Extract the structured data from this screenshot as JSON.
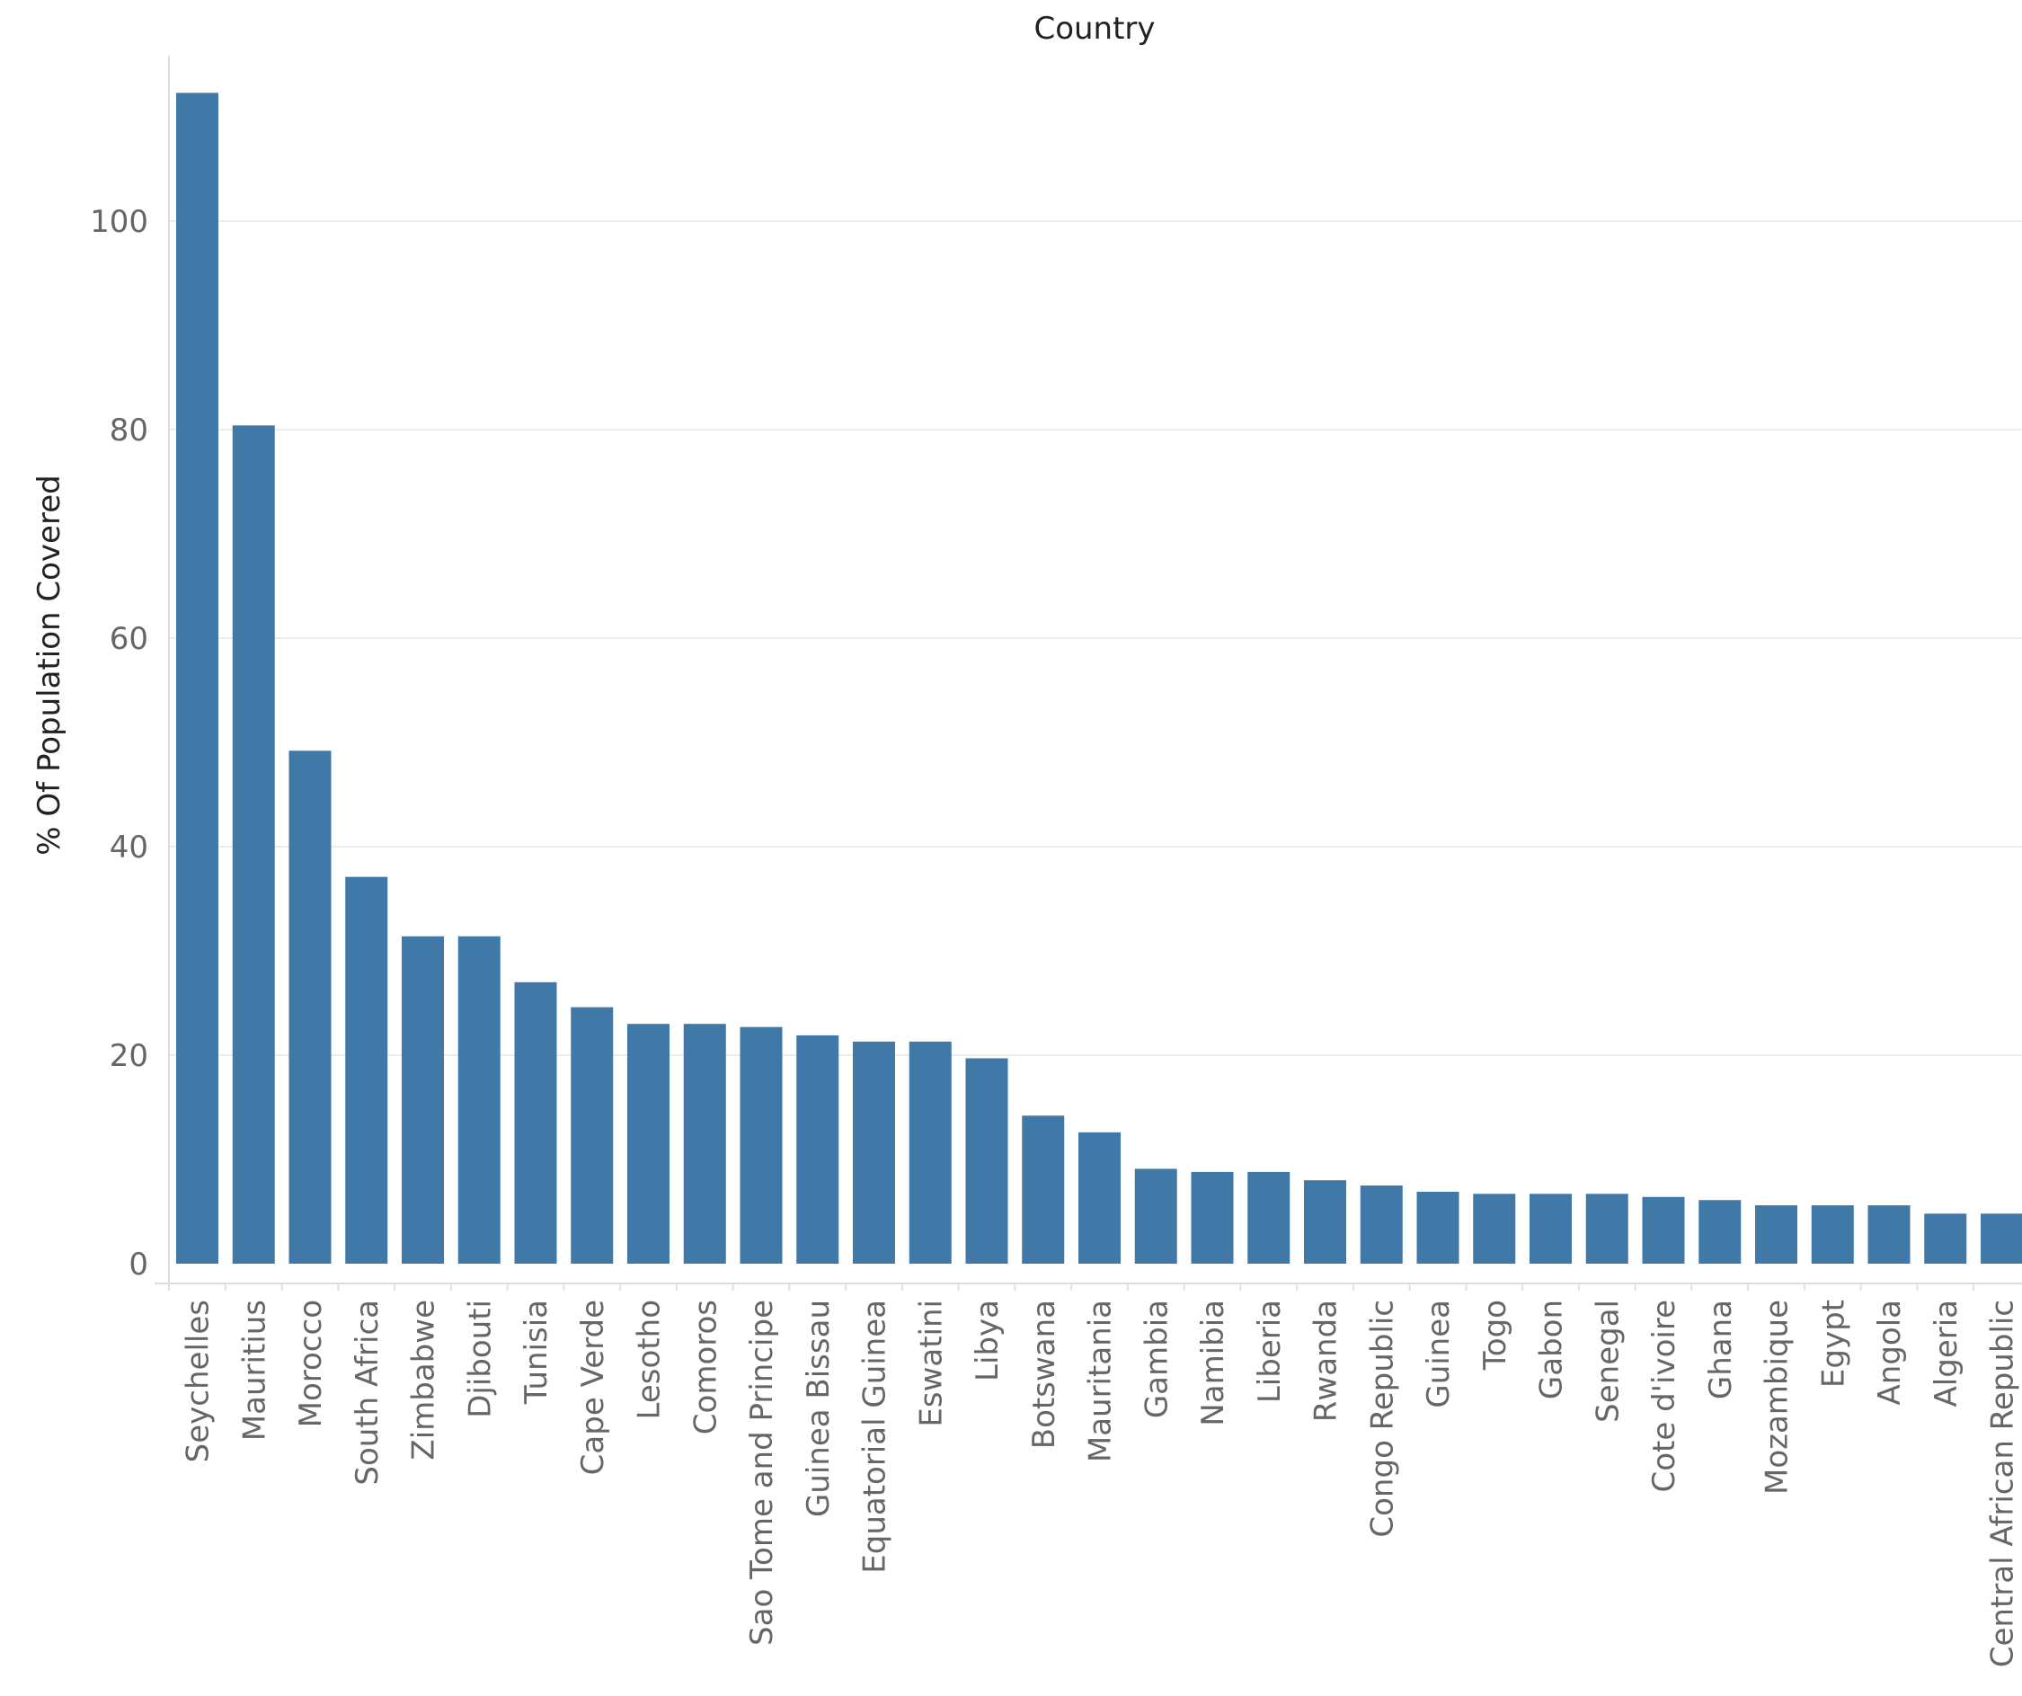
{
  "chart_data": {
    "type": "bar",
    "title": "Country",
    "xlabel": "",
    "ylabel": "% Of Population Covered",
    "ylim": [
      0,
      115
    ],
    "yticks": [
      0,
      20,
      40,
      60,
      80,
      100
    ],
    "grid": true,
    "bar_color": "#4078a8",
    "categories": [
      "Seychelles",
      "Mauritius",
      "Morocco",
      "South Africa",
      "Zimbabwe",
      "Djibouti",
      "Tunisia",
      "Cape Verde",
      "Lesotho",
      "Comoros",
      "Sao Tome and Principe",
      "Guinea Bissau",
      "Equatorial Guinea",
      "Eswatini",
      "Libya",
      "Botswana",
      "Mauritania",
      "Gambia",
      "Namibia",
      "Liberia",
      "Rwanda",
      "Congo Republic",
      "Guinea",
      "Togo",
      "Gabon",
      "Senegal",
      "Cote d'ivoire",
      "Ghana",
      "Mozambique",
      "Egypt",
      "Angola",
      "Algeria",
      "Central African Republic"
    ],
    "values": [
      112.3,
      80.4,
      49.2,
      37.1,
      31.4,
      31.4,
      27.0,
      24.6,
      23.0,
      23.0,
      22.7,
      21.9,
      21.3,
      21.3,
      19.7,
      14.2,
      12.6,
      9.1,
      8.8,
      8.8,
      8.0,
      7.5,
      6.9,
      6.7,
      6.7,
      6.7,
      6.4,
      6.1,
      5.6,
      5.6,
      5.6,
      4.8,
      4.8
    ]
  }
}
